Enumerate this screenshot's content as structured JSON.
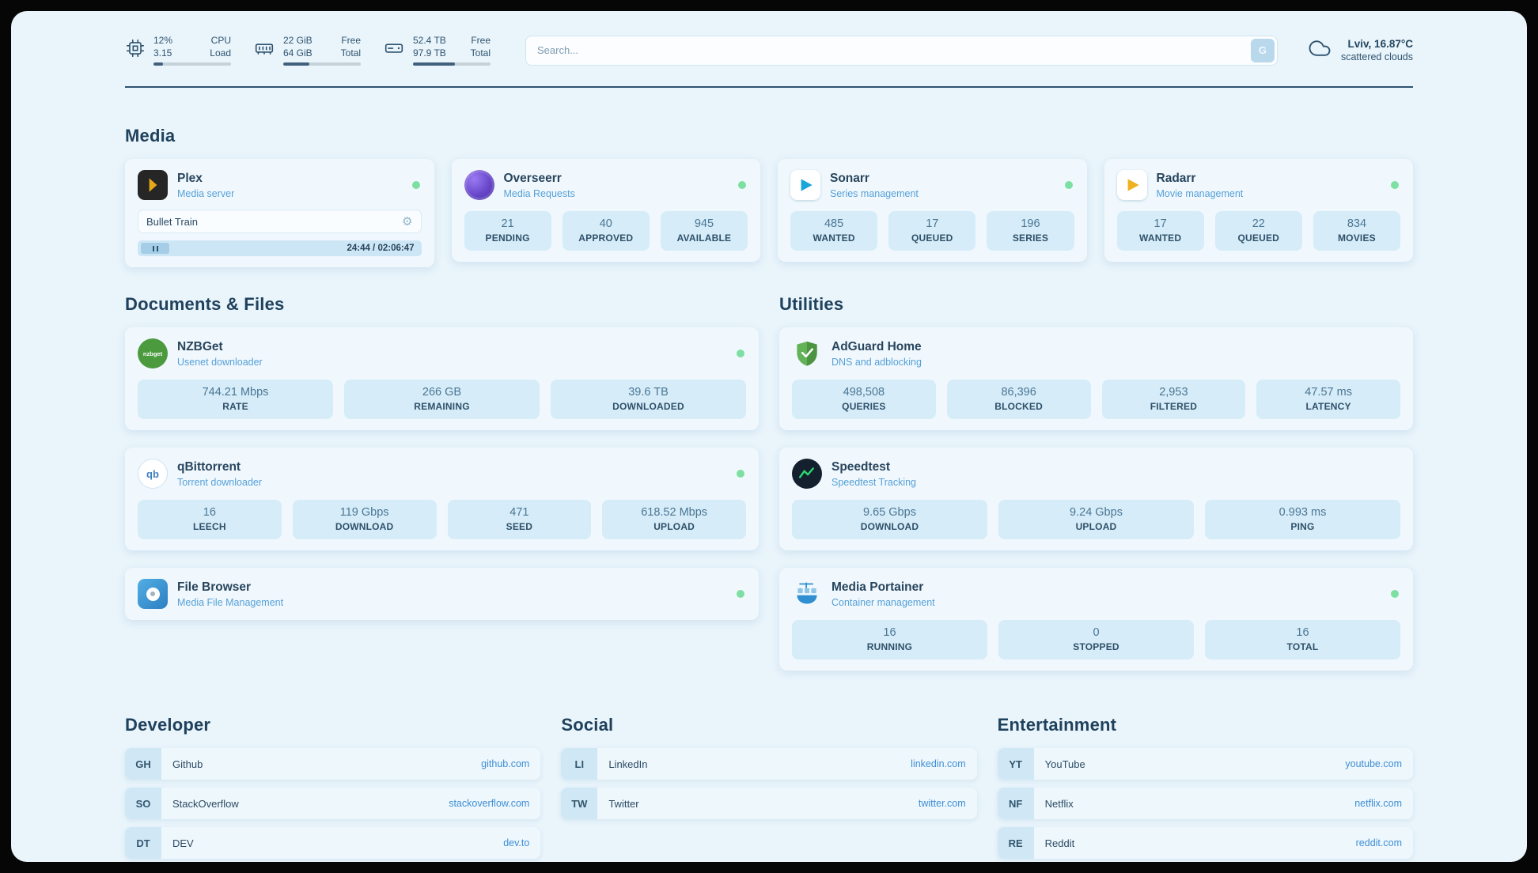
{
  "topbar": {
    "cpu": {
      "value": "12%",
      "sub": "3.15",
      "label_top": "CPU",
      "label_bottom": "Load",
      "pct": 12
    },
    "ram": {
      "value": "22 GiB",
      "sub": "64 GiB",
      "label_top": "Free",
      "label_bottom": "Total",
      "pct": 34
    },
    "disk": {
      "value": "52.4 TB",
      "sub": "97.9 TB",
      "label_top": "Free",
      "label_bottom": "Total",
      "pct": 54
    },
    "search": {
      "placeholder": "Search...",
      "button_label": "G"
    },
    "weather": {
      "location": "Lviv, 16.87°C",
      "condition": "scattered clouds"
    }
  },
  "icons": {
    "gear": "⚙"
  },
  "sections": {
    "media": {
      "title": "Media"
    },
    "documents": {
      "title": "Documents & Files"
    },
    "utilities": {
      "title": "Utilities"
    },
    "developer": {
      "title": "Developer"
    },
    "social": {
      "title": "Social"
    },
    "entertainment": {
      "title": "Entertainment"
    }
  },
  "media_cards": {
    "plex": {
      "name": "Plex",
      "desc": "Media server",
      "now_playing": {
        "title": "Bullet Train",
        "time": "24:44 / 02:06:47"
      }
    },
    "overseerr": {
      "name": "Overseerr",
      "desc": "Media Requests",
      "stats": [
        {
          "value": "21",
          "label": "PENDING"
        },
        {
          "value": "40",
          "label": "APPROVED"
        },
        {
          "value": "945",
          "label": "AVAILABLE"
        }
      ]
    },
    "sonarr": {
      "name": "Sonarr",
      "desc": "Series management",
      "stats": [
        {
          "value": "485",
          "label": "WANTED"
        },
        {
          "value": "17",
          "label": "QUEUED"
        },
        {
          "value": "196",
          "label": "SERIES"
        }
      ]
    },
    "radarr": {
      "name": "Radarr",
      "desc": "Movie management",
      "stats": [
        {
          "value": "17",
          "label": "WANTED"
        },
        {
          "value": "22",
          "label": "QUEUED"
        },
        {
          "value": "834",
          "label": "MOVIES"
        }
      ]
    }
  },
  "documents_cards": {
    "nzbget": {
      "name": "NZBGet",
      "desc": "Usenet downloader",
      "icon_text": "nzbget",
      "stats": [
        {
          "value": "744.21 Mbps",
          "label": "RATE"
        },
        {
          "value": "266 GB",
          "label": "REMAINING"
        },
        {
          "value": "39.6 TB",
          "label": "DOWNLOADED"
        }
      ]
    },
    "qbittorrent": {
      "name": "qBittorrent",
      "desc": "Torrent downloader",
      "icon_text": "qb",
      "stats": [
        {
          "value": "16",
          "label": "LEECH"
        },
        {
          "value": "119 Gbps",
          "label": "DOWNLOAD"
        },
        {
          "value": "471",
          "label": "SEED"
        },
        {
          "value": "618.52 Mbps",
          "label": "UPLOAD"
        }
      ]
    },
    "filebrowser": {
      "name": "File Browser",
      "desc": "Media File Management"
    }
  },
  "utilities_cards": {
    "adguard": {
      "name": "AdGuard Home",
      "desc": "DNS and adblocking",
      "stats": [
        {
          "value": "498,508",
          "label": "QUERIES"
        },
        {
          "value": "86,396",
          "label": "BLOCKED"
        },
        {
          "value": "2,953",
          "label": "FILTERED"
        },
        {
          "value": "47.57 ms",
          "label": "LATENCY"
        }
      ]
    },
    "speedtest": {
      "name": "Speedtest",
      "desc": "Speedtest Tracking",
      "stats": [
        {
          "value": "9.65 Gbps",
          "label": "DOWNLOAD"
        },
        {
          "value": "9.24 Gbps",
          "label": "UPLOAD"
        },
        {
          "value": "0.993 ms",
          "label": "PING"
        }
      ]
    },
    "portainer": {
      "name": "Media Portainer",
      "desc": "Container management",
      "stats": [
        {
          "value": "16",
          "label": "RUNNING"
        },
        {
          "value": "0",
          "label": "STOPPED"
        },
        {
          "value": "16",
          "label": "TOTAL"
        }
      ]
    }
  },
  "bookmarks": {
    "developer": [
      {
        "abbr": "GH",
        "name": "Github",
        "domain": "github.com"
      },
      {
        "abbr": "SO",
        "name": "StackOverflow",
        "domain": "stackoverflow.com"
      },
      {
        "abbr": "DT",
        "name": "DEV",
        "domain": "dev.to"
      }
    ],
    "social": [
      {
        "abbr": "LI",
        "name": "LinkedIn",
        "domain": "linkedin.com"
      },
      {
        "abbr": "TW",
        "name": "Twitter",
        "domain": "twitter.com"
      }
    ],
    "entertainment": [
      {
        "abbr": "YT",
        "name": "YouTube",
        "domain": "youtube.com"
      },
      {
        "abbr": "NF",
        "name": "Netflix",
        "domain": "netflix.com"
      },
      {
        "abbr": "RE",
        "name": "Reddit",
        "domain": "reddit.com"
      }
    ]
  },
  "colors": {
    "background": "#e9f4fb",
    "card": "#f0f8fd",
    "stat_pill": "#d6ecf9",
    "accent_blue": "#3e8ed6",
    "status_green": "#7de0a2",
    "text_dark": "#28455d"
  }
}
